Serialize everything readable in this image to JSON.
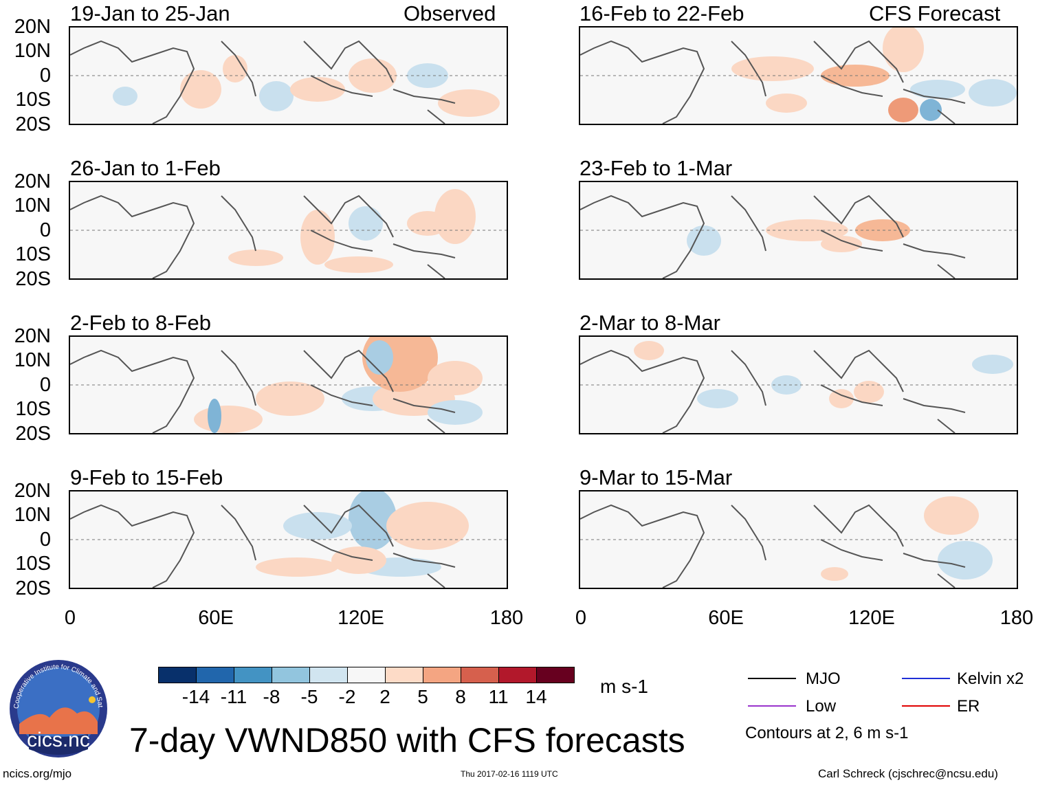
{
  "panels_left": [
    {
      "title": "19-Jan to 25-Jan",
      "tag": "Observed"
    },
    {
      "title": "26-Jan to 1-Feb",
      "tag": ""
    },
    {
      "title": "2-Feb to 8-Feb",
      "tag": ""
    },
    {
      "title": "9-Feb to 15-Feb",
      "tag": ""
    }
  ],
  "panels_right": [
    {
      "title": "16-Feb to 22-Feb",
      "tag": "CFS Forecast"
    },
    {
      "title": "23-Feb to 1-Mar",
      "tag": ""
    },
    {
      "title": "2-Mar to 8-Mar",
      "tag": ""
    },
    {
      "title": "9-Mar to 15-Mar",
      "tag": ""
    }
  ],
  "y_ticks": [
    "20N",
    "10N",
    "0",
    "10S",
    "20S"
  ],
  "x_ticks": [
    "0",
    "60E",
    "120E",
    "180"
  ],
  "colorbar": {
    "colors": [
      "#08306b",
      "#2166ac",
      "#4393c3",
      "#92c5de",
      "#d1e5f0",
      "#f7f7f7",
      "#fddbc7",
      "#f4a582",
      "#d6604d",
      "#b2182b",
      "#67001f"
    ],
    "labels": [
      "-14",
      "-11",
      "-8",
      "-5",
      "-2",
      "2",
      "5",
      "8",
      "11",
      "14"
    ],
    "units": "m s-1"
  },
  "legend": {
    "mjo": "MJO",
    "low": "Low",
    "kelvin": "Kelvin x2",
    "er": "ER",
    "contours": "Contours at 2, 6 m s-1",
    "colors": {
      "mjo": "#000000",
      "low": "#9933cc",
      "kelvin": "#1f2fd6",
      "er": "#e00000"
    }
  },
  "title": "7-day VWND850 with CFS forecasts",
  "logo": {
    "text": "cics.nc",
    "ring_text": "Cooperative Institute for Climate and Satellites"
  },
  "footer": {
    "url": "ncics.org/mjo",
    "timestamp": "Thu 2017-02-16 1119 UTC",
    "author": "Carl Schreck (cjschrec@ncsu.edu)"
  }
}
